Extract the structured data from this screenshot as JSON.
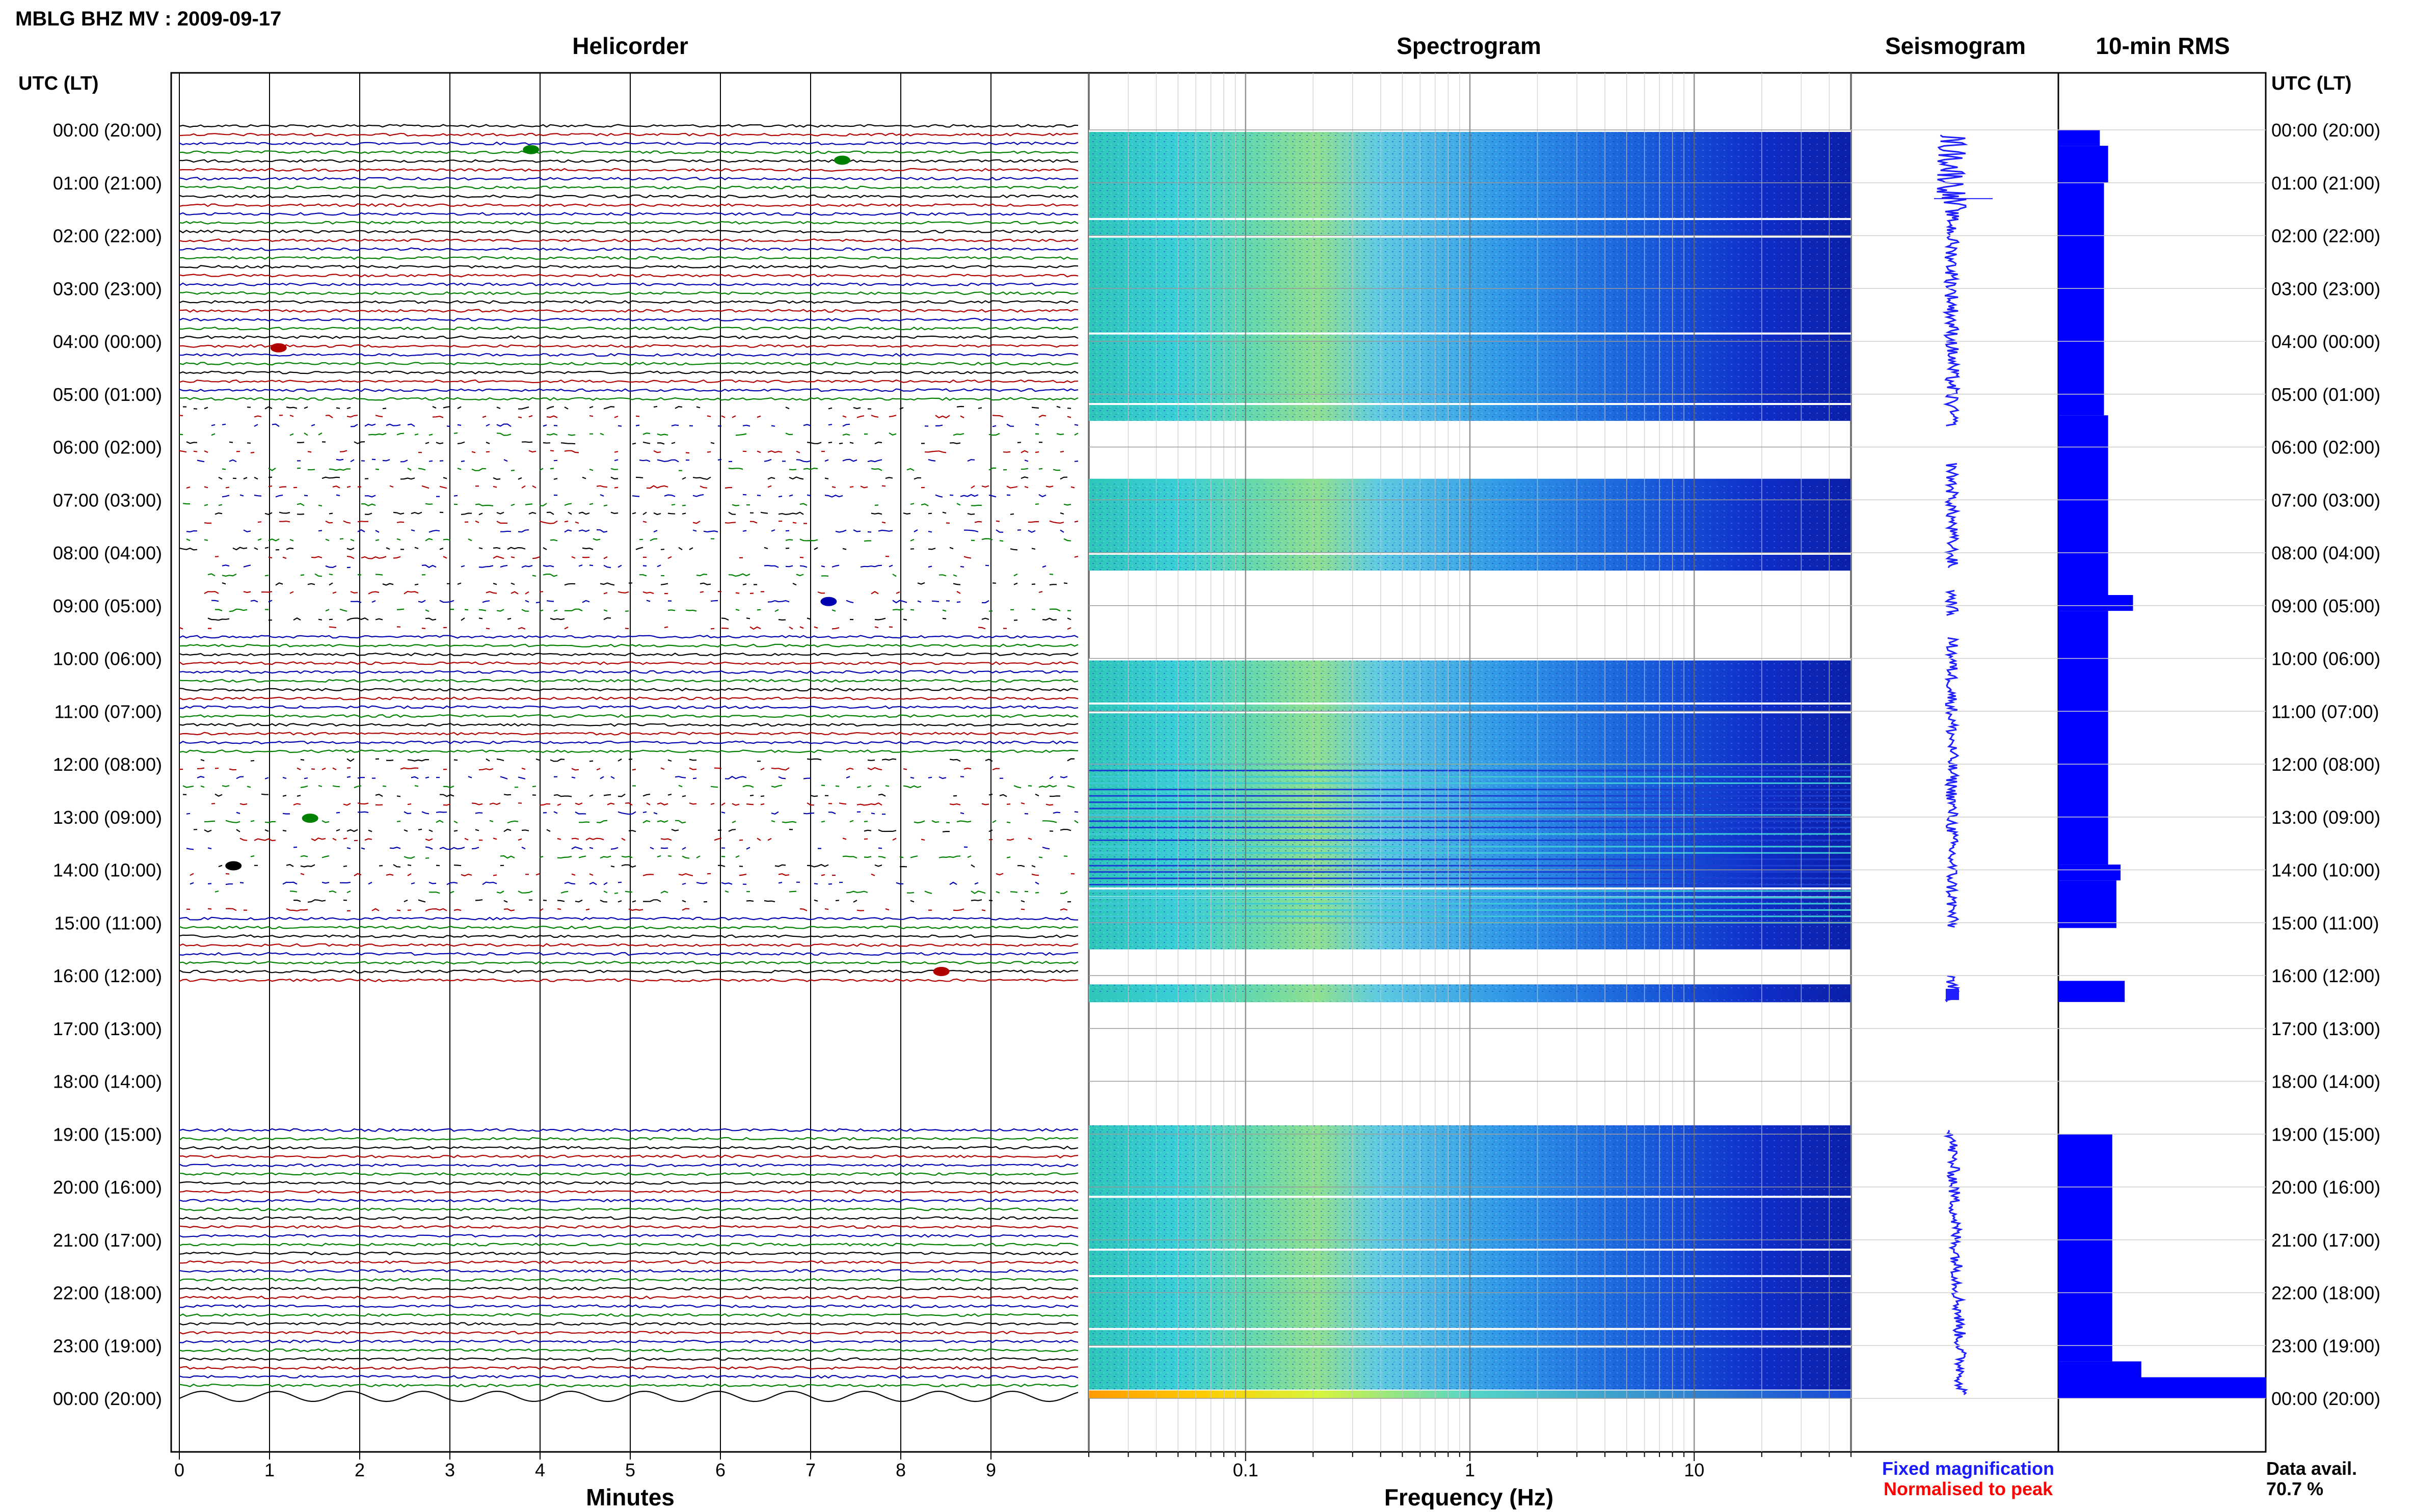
{
  "header": {
    "station_title": "MBLG BHZ MV : 2009-09-17",
    "utc_lt_label_left": "UTC (LT)",
    "utc_lt_label_right": "UTC (LT)"
  },
  "panels": {
    "helicorder_title": "Helicorder",
    "spectrogram_title": "Spectrogram",
    "seismogram_title": "Seismogram",
    "rms_title": "10-min RMS"
  },
  "footer": {
    "minutes_label": "Minutes",
    "frequency_label": "Frequency (Hz)",
    "fixed_magnification": "Fixed magnification",
    "normalised_to_peak": "Normalised to peak",
    "data_avail_label": "Data avail.",
    "data_avail_value": "70.7 %"
  },
  "colors": {
    "trace_cycle": [
      "#000000",
      "#b00000",
      "#0000b0",
      "#008000"
    ],
    "fixed_magnification": "#1a1aff",
    "normalised_to_peak": "#ff0000",
    "rms_bar": "#0000ff",
    "seismogram": "#2020ff",
    "spectrogram_low": "#00008b",
    "spectrogram_high": "#ffff00"
  },
  "chart_data": {
    "type": "helicorder",
    "hour_labels": [
      "00:00 (20:00)",
      "01:00 (21:00)",
      "02:00 (22:00)",
      "03:00 (23:00)",
      "04:00 (00:00)",
      "05:00 (01:00)",
      "06:00 (02:00)",
      "07:00 (03:00)",
      "08:00 (04:00)",
      "09:00 (05:00)",
      "10:00 (06:00)",
      "11:00 (07:00)",
      "12:00 (08:00)",
      "13:00 (09:00)",
      "14:00 (10:00)",
      "15:00 (11:00)",
      "16:00 (12:00)",
      "17:00 (13:00)",
      "18:00 (14:00)",
      "19:00 (15:00)",
      "20:00 (16:00)",
      "21:00 (17:00)",
      "22:00 (18:00)",
      "23:00 (19:00)",
      "00:00 (20:00)"
    ],
    "helicorder": {
      "xlabel": "Minutes",
      "x_ticks": [
        0,
        1,
        2,
        3,
        4,
        5,
        6,
        7,
        8,
        9
      ],
      "xlim": [
        0,
        10
      ],
      "traces_per_hour": 6,
      "data_gaps_hours": [
        [
          16.3,
          19.0
        ]
      ],
      "sparse_hours": [
        [
          5.3,
          9.6
        ],
        [
          12.0,
          15.0
        ]
      ]
    },
    "spectrogram": {
      "xlabel": "Frequency (Hz)",
      "x_scale": "log",
      "xlim": [
        0.02,
        50
      ],
      "x_tick_labels": [
        "0.1",
        "1",
        "10"
      ],
      "gap_hours": [
        [
          5.4,
          6.6
        ],
        [
          8.2,
          10.0
        ],
        [
          15.4,
          16.1
        ],
        [
          16.5,
          18.8
        ]
      ]
    },
    "seismogram": {
      "gap_hours": [
        [
          15.1,
          16.0
        ],
        [
          16.5,
          18.9
        ]
      ]
    },
    "rms_10min": {
      "xlim": [
        0,
        1
      ],
      "segments": [
        {
          "from": 0.0,
          "to": 0.3,
          "value": 0.2
        },
        {
          "from": 0.3,
          "to": 1.0,
          "value": 0.24
        },
        {
          "from": 1.0,
          "to": 5.4,
          "value": 0.22
        },
        {
          "from": 5.4,
          "to": 8.8,
          "value": 0.24
        },
        {
          "from": 8.8,
          "to": 9.1,
          "value": 0.36
        },
        {
          "from": 9.1,
          "to": 13.9,
          "value": 0.24
        },
        {
          "from": 13.9,
          "to": 14.2,
          "value": 0.3
        },
        {
          "from": 14.2,
          "to": 15.1,
          "value": 0.28
        },
        {
          "from": 16.1,
          "to": 16.5,
          "value": 0.32
        },
        {
          "from": 19.0,
          "to": 23.3,
          "value": 0.26
        },
        {
          "from": 23.3,
          "to": 23.6,
          "value": 0.4
        },
        {
          "from": 23.6,
          "to": 24.0,
          "value": 1.0
        }
      ]
    }
  }
}
